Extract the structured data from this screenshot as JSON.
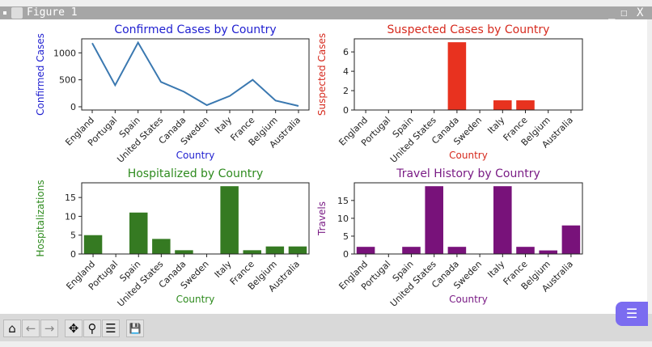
{
  "window": {
    "title": "Figure 1",
    "minimize": "_",
    "maximize": "☐",
    "close": "X"
  },
  "toolbar": {
    "home": "⌂",
    "back": "←",
    "forward": "→",
    "pan": "✥",
    "zoom": "⚲",
    "configure": "☰",
    "save": "💾"
  },
  "chart_data": [
    {
      "type": "line",
      "title": "Confirmed Cases by Country",
      "xlabel": "Country",
      "ylabel": "Confirmed Cases",
      "color": "#1f1fd0",
      "series_color": "#3a78b0",
      "categories": [
        "England",
        "Portugal",
        "Spain",
        "United States",
        "Canada",
        "Sweden",
        "Italy",
        "France",
        "Belgium",
        "Australia"
      ],
      "values": [
        1180,
        400,
        1190,
        460,
        280,
        30,
        200,
        500,
        115,
        15
      ],
      "ylim": [
        -60,
        1260
      ],
      "yticks": [
        0,
        500,
        1000
      ]
    },
    {
      "type": "bar",
      "title": "Suspected Cases by Country",
      "xlabel": "Country",
      "ylabel": "Suspected Cases",
      "color": "#d62a1e",
      "series_color": "#e8321f",
      "categories": [
        "England",
        "Portugal",
        "Spain",
        "United States",
        "Canada",
        "Sweden",
        "Italy",
        "France",
        "Belgium",
        "Australia"
      ],
      "values": [
        0,
        0,
        0,
        0,
        7,
        0,
        1,
        1,
        0,
        0
      ],
      "ylim": [
        0,
        7.35
      ],
      "yticks": [
        0,
        2,
        4,
        6
      ]
    },
    {
      "type": "bar",
      "title": "Hospitalized by Country",
      "xlabel": "Country",
      "ylabel": "Hospitalizations",
      "color": "#2e8b1e",
      "series_color": "#357a22",
      "categories": [
        "England",
        "Portugal",
        "Spain",
        "United States",
        "Canada",
        "Sweden",
        "Italy",
        "France",
        "Belgium",
        "Australia"
      ],
      "values": [
        5,
        0,
        11,
        4,
        1,
        0,
        18,
        1,
        2,
        2
      ],
      "ylim": [
        0,
        18.9
      ],
      "yticks": [
        0,
        5,
        10,
        15
      ]
    },
    {
      "type": "bar",
      "title": "Travel History by Country",
      "xlabel": "Country",
      "ylabel": "Travels",
      "color": "#7a1c85",
      "series_color": "#78127a",
      "categories": [
        "England",
        "Portugal",
        "Spain",
        "United States",
        "Canada",
        "Sweden",
        "Italy",
        "France",
        "Belgium",
        "Australia"
      ],
      "values": [
        2,
        0,
        2,
        19,
        2,
        0,
        19,
        2,
        1,
        8
      ],
      "ylim": [
        0,
        19.95
      ],
      "yticks": [
        0,
        5,
        10,
        15
      ]
    }
  ]
}
